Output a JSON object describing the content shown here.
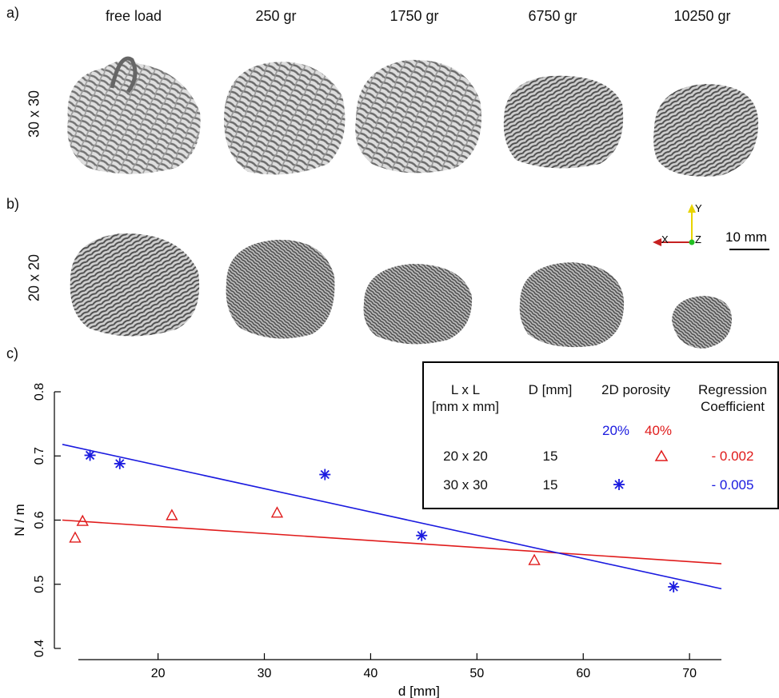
{
  "panels": {
    "a": "a)",
    "b": "b)",
    "c": "c)"
  },
  "columns": [
    "free load",
    "250 gr",
    "1750 gr",
    "6750 gr",
    "10250 gr"
  ],
  "rows": [
    "30 x 30",
    "20 x 20"
  ],
  "axes_triad": {
    "x": "X",
    "y": "Y",
    "z": "Z"
  },
  "scale_bar": "10 mm",
  "legend": {
    "headers": [
      "L x L\n[mm x mm]",
      "D [mm]",
      "2D porosity",
      "Regression\nCoefficient"
    ],
    "h_lxl_1": "L x L",
    "h_lxl_2": "[mm x mm]",
    "h_d": "D [mm]",
    "h_por": "2D porosity",
    "h_reg_1": "Regression",
    "h_reg_2": "Coefficient",
    "por_20": "20%",
    "por_40": "40%",
    "rows": [
      {
        "lxl": "20 x 20",
        "d": "15",
        "coef": "- 0.002"
      },
      {
        "lxl": "30 x 30",
        "d": "15",
        "coef": "- 0.005"
      }
    ]
  },
  "colors": {
    "blue": "#1a1adf",
    "red": "#e01b1b",
    "sample": "#7a7a7a"
  },
  "chart_data": {
    "type": "scatter",
    "xlabel": "d [mm]",
    "ylabel": "N / m",
    "xlim": [
      11,
      73
    ],
    "ylim": [
      0.4,
      0.8
    ],
    "xticks": [
      20,
      30,
      40,
      50,
      60,
      70
    ],
    "yticks": [
      0.4,
      0.5,
      0.6,
      0.7,
      0.8
    ],
    "series": [
      {
        "marker": "triangle",
        "color": "#e01b1b",
        "points": [
          [
            12.2,
            0.572
          ],
          [
            12.9,
            0.598
          ],
          [
            21.3,
            0.607
          ],
          [
            31.2,
            0.611
          ],
          [
            55.4,
            0.537
          ]
        ],
        "fit": [
          [
            11,
            0.6
          ],
          [
            73,
            0.532
          ]
        ]
      },
      {
        "marker": "asterisk",
        "color": "#1a1adf",
        "points": [
          [
            13.6,
            0.701
          ],
          [
            16.4,
            0.688
          ],
          [
            35.7,
            0.671
          ],
          [
            44.8,
            0.576
          ],
          [
            68.5,
            0.496
          ]
        ],
        "fit": [
          [
            11,
            0.718
          ],
          [
            73,
            0.493
          ]
        ]
      }
    ]
  }
}
